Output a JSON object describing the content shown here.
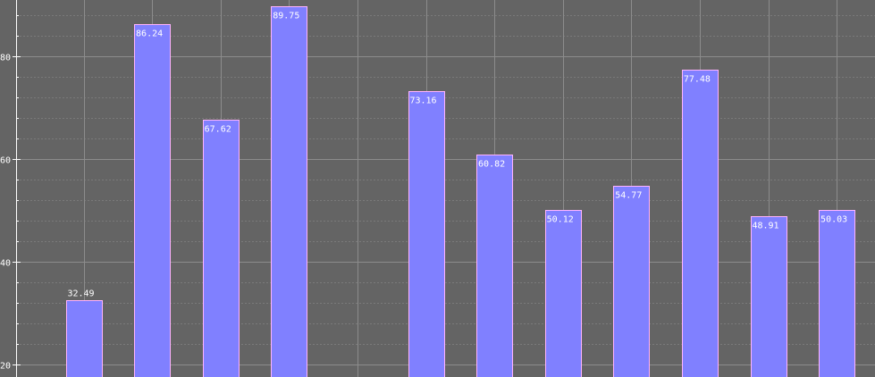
{
  "chart_data": {
    "type": "bar",
    "title": "",
    "xlabel": "",
    "ylabel": "",
    "categories": [
      "",
      "",
      "",
      "",
      "",
      "",
      "",
      "",
      "",
      "",
      "",
      ""
    ],
    "values": [
      32.49,
      86.24,
      67.62,
      89.75,
      null,
      73.16,
      60.82,
      50.12,
      54.77,
      77.48,
      48.91,
      50.03
    ],
    "value_labels": [
      "32.49",
      "86.24",
      "67.62",
      "89.75",
      "",
      "73.16",
      "60.82",
      "50.12",
      "54.77",
      "77.48",
      "48.91",
      "50.03"
    ],
    "y_ticks": [
      20,
      40,
      60,
      80
    ],
    "y_tick_labels": [
      "20",
      "40",
      "60",
      "80"
    ],
    "ylim": [
      17.5,
      91
    ],
    "grid": true,
    "legend": "none"
  },
  "colors": {
    "background": "#646464",
    "bar_fill": "#8080ff",
    "bar_stroke": "#ffb3ff",
    "grid_major": "#8c8c8c",
    "grid_minor": "#7a7a7a",
    "axis": "#ffffff",
    "label_text": "#ffffff"
  }
}
